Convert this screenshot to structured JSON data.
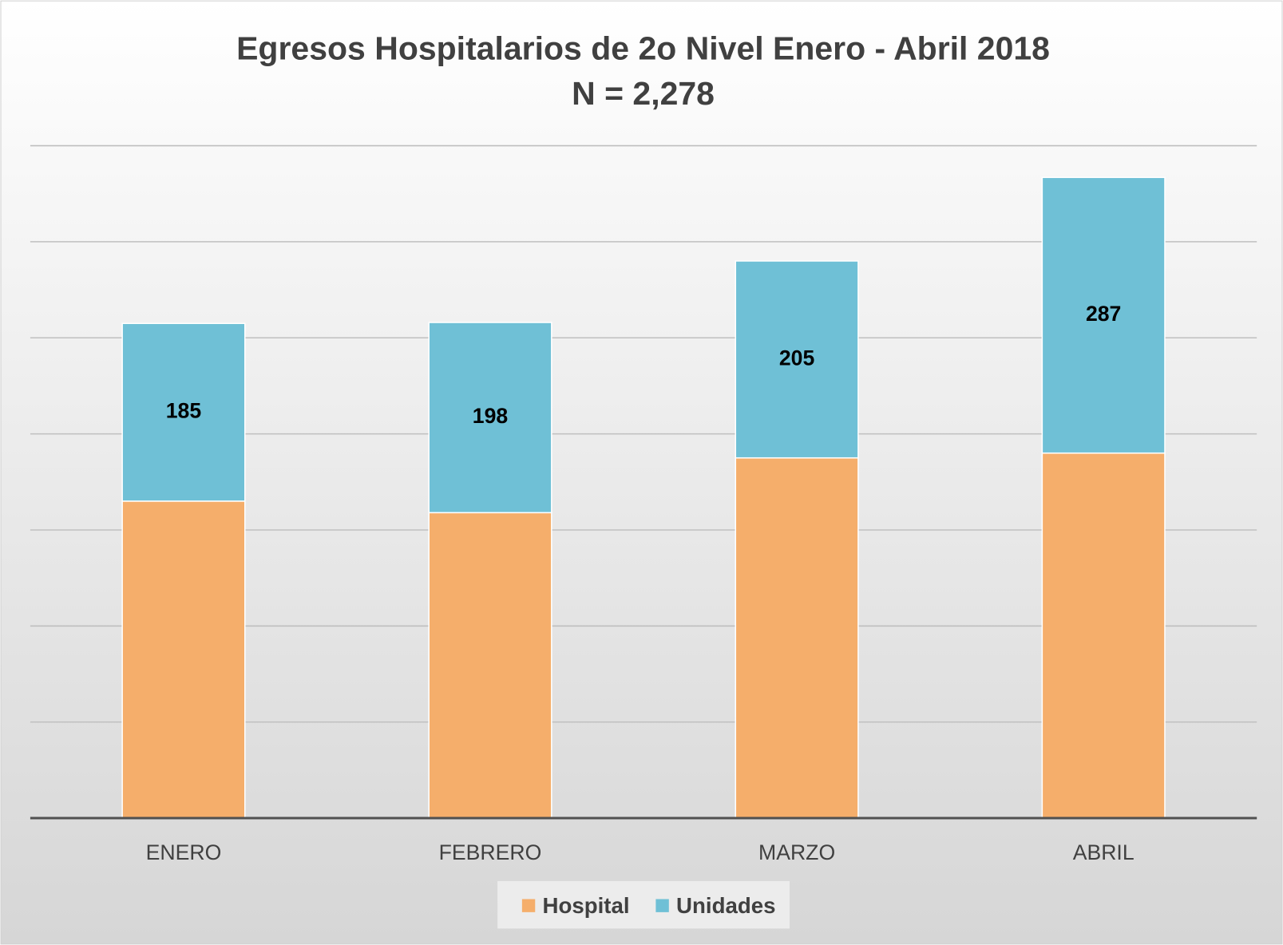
{
  "chart_data": {
    "type": "stacked_bar",
    "title": "Egresos Hospitalarios de 2o Nivel Enero - Abril 2018",
    "subtitle": "N = 2,278",
    "categories": [
      "ENERO",
      "FEBRERO",
      "MARZO",
      "ABRIL"
    ],
    "series": [
      {
        "name": "Hospital",
        "color": "#f5ae6b",
        "values": [
          330,
          318,
          375,
          380
        ]
      },
      {
        "name": "Unidades",
        "color": "#6fc0d6",
        "values": [
          185,
          198,
          205,
          287
        ]
      }
    ],
    "labeled_series": [
      "Unidades"
    ],
    "ylim": [
      0,
      700
    ],
    "yticks": [
      0,
      100,
      200,
      300,
      400,
      500,
      600,
      700
    ],
    "grid": true,
    "legend": "bottom"
  }
}
